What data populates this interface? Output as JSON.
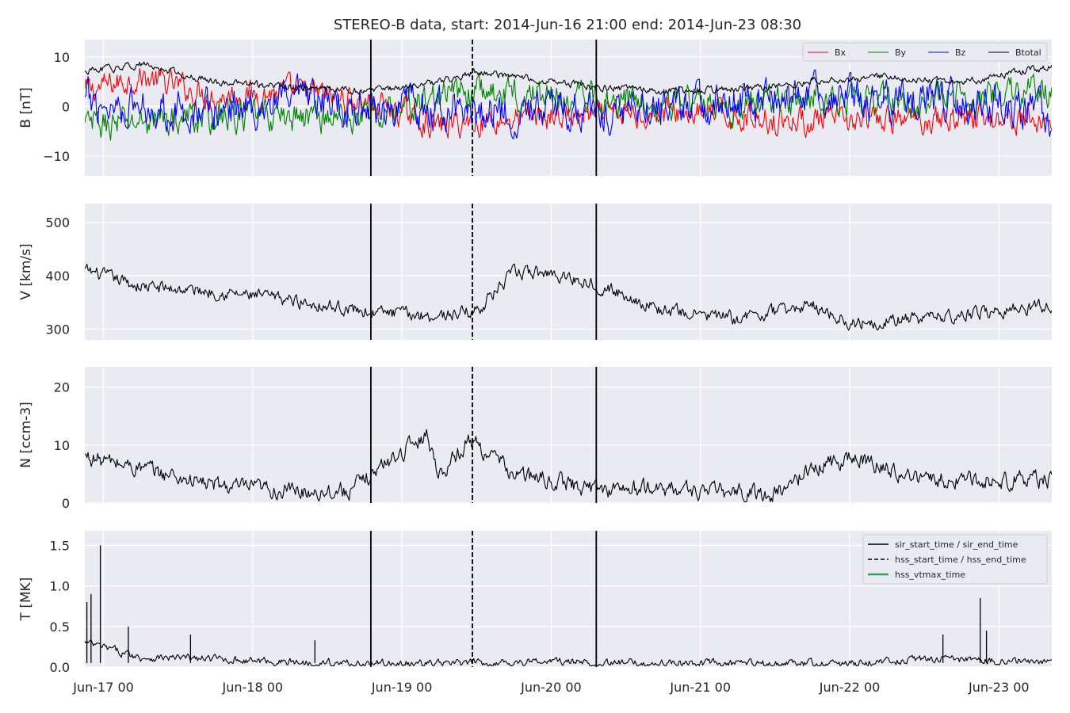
{
  "chart_data": {
    "type": "line",
    "title": "STEREO-B data, start: 2014-Jun-16 21:00  end: 2014-Jun-23 08:30",
    "x_range": [
      "2014-06-16 21:00",
      "2014-06-23 08:30"
    ],
    "x_tick_labels": [
      "Jun-17 00",
      "Jun-18 00",
      "Jun-19 00",
      "Jun-20 00",
      "Jun-21 00",
      "Jun-22 00",
      "Jun-23 00"
    ],
    "x_tick_dates": [
      "2014-06-17 00:00",
      "2014-06-18 00:00",
      "2014-06-19 00:00",
      "2014-06-20 00:00",
      "2014-06-21 00:00",
      "2014-06-22 00:00",
      "2014-06-23 00:00"
    ],
    "grid": true,
    "event_markers": [
      {
        "time": "2014-06-18 19:00",
        "style": "solid"
      },
      {
        "time": "2014-06-19 11:20",
        "style": "dashed"
      },
      {
        "time": "2014-06-20 07:15",
        "style": "solid"
      }
    ],
    "panels": [
      {
        "ylabel": "B [nT]",
        "ylim": [
          -14,
          13.5
        ],
        "yticks": [
          -10,
          0,
          10
        ],
        "ytick_labels": [
          "−10",
          "0",
          "10"
        ],
        "legend": {
          "placement": "top-right",
          "ncol": 4,
          "entries": [
            "Bx",
            "By",
            "Bz",
            "Btotal"
          ]
        },
        "series": [
          {
            "name": "Bx",
            "color": "#ff0000",
            "x": [
              "2014-06-16 21:00",
              "2014-06-17 06:00",
              "2014-06-17 18:00",
              "2014-06-18 06:00",
              "2014-06-18 19:00",
              "2014-06-19 06:00",
              "2014-06-19 12:00",
              "2014-06-20 00:00",
              "2014-06-20 07:00",
              "2014-06-20 18:00",
              "2014-06-21 06:00",
              "2014-06-21 18:00",
              "2014-06-22 06:00",
              "2014-06-22 18:00",
              "2014-06-23 08:30"
            ],
            "y": [
              3,
              6,
              2,
              3,
              1,
              -4,
              -3,
              -2,
              -2,
              -1,
              -2,
              -3,
              -3,
              -2,
              -3
            ],
            "amp": 2.2
          },
          {
            "name": "By",
            "color": "#008000",
            "x": [
              "2014-06-16 21:00",
              "2014-06-17 06:00",
              "2014-06-17 18:00",
              "2014-06-18 06:00",
              "2014-06-18 19:00",
              "2014-06-19 06:00",
              "2014-06-19 12:00",
              "2014-06-20 00:00",
              "2014-06-20 07:00",
              "2014-06-20 18:00",
              "2014-06-21 06:00",
              "2014-06-21 18:00",
              "2014-06-22 06:00",
              "2014-06-22 18:00",
              "2014-06-23 08:30"
            ],
            "y": [
              -4,
              -3,
              -2,
              -2,
              -2,
              2,
              3,
              2,
              2,
              1,
              0,
              2,
              1,
              2,
              3
            ],
            "amp": 2.6
          },
          {
            "name": "Bz",
            "color": "#0000ff",
            "x": [
              "2014-06-16 21:00",
              "2014-06-17 06:00",
              "2014-06-17 18:00",
              "2014-06-18 06:00",
              "2014-06-18 19:00",
              "2014-06-19 06:00",
              "2014-06-19 12:00",
              "2014-06-20 00:00",
              "2014-06-20 07:00",
              "2014-06-20 18:00",
              "2014-06-21 06:00",
              "2014-06-21 18:00",
              "2014-06-22 06:00",
              "2014-06-22 18:00",
              "2014-06-23 08:30"
            ],
            "y": [
              1,
              0,
              -1,
              1,
              0,
              -1,
              -1,
              -1,
              -1,
              0,
              1,
              2,
              1,
              1,
              -2
            ],
            "amp": 3.2
          },
          {
            "name": "Btotal",
            "color": "#000000",
            "x": [
              "2014-06-16 21:00",
              "2014-06-17 06:00",
              "2014-06-17 18:00",
              "2014-06-18 06:00",
              "2014-06-18 19:00",
              "2014-06-19 06:00",
              "2014-06-19 12:00",
              "2014-06-20 00:00",
              "2014-06-20 07:00",
              "2014-06-20 18:00",
              "2014-06-21 06:00",
              "2014-06-21 18:00",
              "2014-06-22 06:00",
              "2014-06-22 18:00",
              "2014-06-23 08:30"
            ],
            "y": [
              7,
              8.5,
              5,
              4,
              3,
              5,
              7,
              5,
              4,
              3,
              3.5,
              5,
              6,
              5,
              8
            ],
            "amp": 0.6
          }
        ]
      },
      {
        "ylabel": "V [km/s]",
        "ylim": [
          280,
          535
        ],
        "yticks": [
          300,
          400,
          500
        ],
        "ytick_labels": [
          "300",
          "400",
          "500"
        ],
        "series": [
          {
            "name": "",
            "color": "#000000",
            "x": [
              "2014-06-16 21:00",
              "2014-06-17 06:00",
              "2014-06-17 18:00",
              "2014-06-18 06:00",
              "2014-06-18 19:00",
              "2014-06-19 06:00",
              "2014-06-19 12:00",
              "2014-06-19 18:00",
              "2014-06-20 00:00",
              "2014-06-20 07:00",
              "2014-06-20 18:00",
              "2014-06-21 06:00",
              "2014-06-21 18:00",
              "2014-06-22 00:00",
              "2014-06-22 12:00",
              "2014-06-23 08:30"
            ],
            "y": [
              410,
              380,
              370,
              355,
              332,
              325,
              335,
              405,
              405,
              385,
              335,
              320,
              345,
              312,
              320,
              345
            ],
            "amp": 10
          }
        ]
      },
      {
        "ylabel": "N [ccm-3]",
        "ylim": [
          0,
          23.5
        ],
        "yticks": [
          0,
          10,
          20
        ],
        "ytick_labels": [
          "0",
          "10",
          "20"
        ],
        "series": [
          {
            "name": "",
            "color": "#000000",
            "x": [
              "2014-06-16 21:00",
              "2014-06-17 06:00",
              "2014-06-17 18:00",
              "2014-06-18 06:00",
              "2014-06-18 16:00",
              "2014-06-18 19:00",
              "2014-06-19 04:00",
              "2014-06-19 06:00",
              "2014-06-19 11:00",
              "2014-06-19 18:00",
              "2014-06-20 07:00",
              "2014-06-20 18:00",
              "2014-06-21 12:00",
              "2014-06-21 18:00",
              "2014-06-22 00:00",
              "2014-06-22 12:00",
              "2014-06-23 08:30"
            ],
            "y": [
              8,
              6,
              3,
              2,
              2.2,
              5,
              12,
              5,
              11,
              5,
              2.5,
              2.5,
              1.5,
              6,
              8,
              4,
              4
            ],
            "amp": 1.2
          }
        ]
      },
      {
        "ylabel": "T [MK]",
        "ylim": [
          0,
          1.68
        ],
        "yticks": [
          0.0,
          0.5,
          1.0,
          1.5
        ],
        "ytick_labels": [
          "0.0",
          "0.5",
          "1.0",
          "1.5"
        ],
        "legend": {
          "placement": "top-right",
          "entries": [
            {
              "label": "sir_start_time / sir_end_time",
              "style": "solid",
              "color": "#000000"
            },
            {
              "label": "hss_start_time / hss_end_time",
              "style": "dashed",
              "color": "#000000"
            },
            {
              "label": "hss_vtmax_time",
              "style": "solid",
              "color": "#2ca55a"
            }
          ]
        },
        "series": [
          {
            "name": "",
            "color": "#000000",
            "x": [
              "2014-06-16 21:00",
              "2014-06-17 06:00",
              "2014-06-17 18:00",
              "2014-06-18 06:00",
              "2014-06-18 19:00",
              "2014-06-19 06:00",
              "2014-06-20 00:00",
              "2014-06-20 07:00",
              "2014-06-21 06:00",
              "2014-06-22 00:00",
              "2014-06-22 12:00",
              "2014-06-23 08:30"
            ],
            "y": [
              0.3,
              0.12,
              0.1,
              0.06,
              0.04,
              0.04,
              0.07,
              0.05,
              0.04,
              0.04,
              0.1,
              0.06
            ],
            "amp": 0.04,
            "spikes": [
              [
                "2014-06-16 21:20",
                0.8
              ],
              [
                "2014-06-16 22:00",
                0.9
              ],
              [
                "2014-06-16 23:30",
                1.5
              ],
              [
                "2014-06-17 04:00",
                0.5
              ],
              [
                "2014-06-17 14:00",
                0.4
              ],
              [
                "2014-06-18 10:00",
                0.33
              ],
              [
                "2014-06-22 15:00",
                0.4
              ],
              [
                "2014-06-22 21:00",
                0.85
              ],
              [
                "2014-06-22 22:00",
                0.45
              ]
            ]
          }
        ]
      }
    ]
  },
  "colors": {
    "panel_bg": "#eaeaf2",
    "grid": "#ffffff",
    "text": "#262626"
  }
}
